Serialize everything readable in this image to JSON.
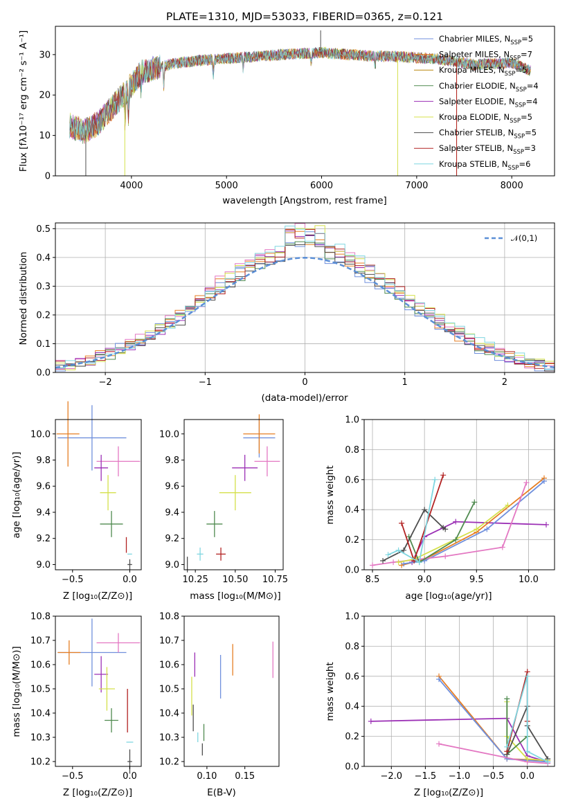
{
  "title": "PLATE=1310, MJD=53033, FIBERID=0365, z=0.121",
  "colors": {
    "Chabrier MILES": "#6f8fdc",
    "Salpeter MILES": "#e67e22",
    "Kroupa MILES": "#b8860b",
    "Chabrier ELODIE": "#4f8a4f",
    "Salpeter ELODIE": "#9b2fb5",
    "Kroupa ELODIE": "#d4e04a",
    "Chabrier STELIB": "#4d4d4d",
    "Salpeter STELIB": "#b22222",
    "Kroupa STELIB": "#7fd6e0",
    "pink": "#e377c2",
    "gaussian": "#5b8fd6"
  },
  "chart_data": [
    {
      "id": "spectrum",
      "type": "line",
      "xlabel": "wavelength [Angstrom, rest frame]",
      "ylabel": "Flux [fλ10⁻¹⁷ erg cm⁻² s⁻¹ A⁻¹]",
      "xlim": [
        3200,
        8450
      ],
      "ylim": [
        0,
        37
      ],
      "xticks": [
        4000,
        5000,
        6000,
        7000,
        8000
      ],
      "yticks": [
        0,
        10,
        20,
        30
      ],
      "continuum": [
        [
          3350,
          12.5
        ],
        [
          3500,
          11
        ],
        [
          3650,
          13
        ],
        [
          3800,
          17
        ],
        [
          3950,
          21
        ],
        [
          4100,
          25.5
        ],
        [
          4300,
          27
        ],
        [
          4500,
          28
        ],
        [
          4700,
          28.5
        ],
        [
          5000,
          29
        ],
        [
          5300,
          29.5
        ],
        [
          5600,
          30
        ],
        [
          6000,
          30.5
        ],
        [
          6400,
          29.8
        ],
        [
          6800,
          29.5
        ],
        [
          7200,
          29
        ],
        [
          7600,
          27.5
        ],
        [
          8000,
          28
        ],
        [
          8200,
          26
        ]
      ],
      "series": [
        {
          "name": "Chabrier MILES, N_SSP=5",
          "label_main": "Chabrier MILES, N",
          "label_sub": "SSP",
          "label_tail": "=5"
        },
        {
          "name": "Salpeter MILES, N_SSP=7",
          "label_main": "Salpeter MILES, N",
          "label_sub": "SSP",
          "label_tail": "=7"
        },
        {
          "name": "Kroupa MILES, N_SSP=5",
          "label_main": "Kroupa MILES, N",
          "label_sub": "SSP",
          "label_tail": "=5"
        },
        {
          "name": "Chabrier ELODIE, N_SSP=4",
          "label_main": "Chabrier ELODIE, N",
          "label_sub": "SSP",
          "label_tail": "=4"
        },
        {
          "name": "Salpeter ELODIE, N_SSP=4",
          "label_main": "Salpeter ELODIE, N",
          "label_sub": "SSP",
          "label_tail": "=4"
        },
        {
          "name": "Kroupa ELODIE, N_SSP=5",
          "label_main": "Kroupa ELODIE, N",
          "label_sub": "SSP",
          "label_tail": "=5"
        },
        {
          "name": "Chabrier STELIB, N_SSP=5",
          "label_main": "Chabrier STELIB, N",
          "label_sub": "SSP",
          "label_tail": "=5"
        },
        {
          "name": "Salpeter STELIB, N_SSP=3",
          "label_main": "Salpeter STELIB, N",
          "label_sub": "SSP",
          "label_tail": "=3"
        },
        {
          "name": "Kroupa STELIB, N_SSP=6",
          "label_main": "Kroupa STELIB, N",
          "label_sub": "SSP",
          "label_tail": "=6"
        }
      ],
      "legend": "top-right",
      "grid": false
    },
    {
      "id": "residuals",
      "type": "bar",
      "xlabel": "(data-model)/error",
      "ylabel": "Normed distribution",
      "xlim": [
        -2.5,
        2.5
      ],
      "ylim": [
        0,
        0.52
      ],
      "xticks": [
        -2,
        -1,
        0,
        1,
        2
      ],
      "yticks": [
        0.0,
        0.1,
        0.2,
        0.3,
        0.4,
        0.5
      ],
      "gaussian_label": "𝒩(0,1)",
      "legend": "top-right",
      "grid": true
    },
    {
      "id": "age_vs_Z",
      "type": "scatter",
      "xlabel": "Z [log₁₀(Z/Z⊙)]",
      "ylabel": "age  [log₁₀(age/yr)]",
      "xlim": [
        -0.65,
        0.1
      ],
      "ylim": [
        8.96,
        10.11
      ],
      "xticks": [
        -0.5,
        0.0
      ],
      "yticks": [
        9.0,
        9.2,
        9.4,
        9.6,
        9.8,
        10.0
      ],
      "points": [
        {
          "c": "Chabrier MILES",
          "x": -0.33,
          "y": 9.97,
          "xe": 0.3,
          "ye": 0.5
        },
        {
          "c": "Salpeter MILES",
          "x": -0.54,
          "y": 10.0,
          "xe": 0.1,
          "ye": 0.5
        },
        {
          "c": "pink",
          "x": -0.1,
          "y": 9.79,
          "xe": 0.19,
          "ye": 0.23
        },
        {
          "c": "Salpeter ELODIE",
          "x": -0.25,
          "y": 9.74,
          "xe": 0.06,
          "ye": 0.2
        },
        {
          "c": "Kroupa ELODIE",
          "x": -0.19,
          "y": 9.55,
          "xe": 0.07,
          "ye": 0.27
        },
        {
          "c": "Chabrier ELODIE",
          "x": -0.16,
          "y": 9.31,
          "xe": 0.1,
          "ye": 0.2
        },
        {
          "c": "Salpeter STELIB",
          "x": -0.03,
          "y": 9.15,
          "xe": 0.0,
          "ye": 0.12
        },
        {
          "c": "Kroupa STELIB",
          "x": -0.0,
          "y": 9.08,
          "xe": 0.02,
          "ye": 0.0
        },
        {
          "c": "Chabrier STELIB",
          "x": -0.0,
          "y": 9.0,
          "xe": 0.02,
          "ye": 0.08
        }
      ]
    },
    {
      "id": "age_vs_mass",
      "type": "scatter",
      "xlabel": "mass [log₁₀(M/M⊙)]",
      "ylabel": "",
      "xlim": [
        10.18,
        10.8
      ],
      "ylim": [
        8.96,
        10.11
      ],
      "xticks": [
        10.25,
        10.5,
        10.75
      ],
      "yticks": [
        9.0,
        9.2,
        9.4,
        9.6,
        9.8,
        10.0
      ],
      "points": [
        {
          "c": "Chabrier MILES",
          "x": 10.65,
          "y": 9.97,
          "xe": 0.1,
          "ye": 0.3
        },
        {
          "c": "Salpeter MILES",
          "x": 10.65,
          "y": 10.0,
          "xe": 0.1,
          "ye": 0.3
        },
        {
          "c": "pink",
          "x": 10.7,
          "y": 9.79,
          "xe": 0.08,
          "ye": 0.23
        },
        {
          "c": "Salpeter ELODIE",
          "x": 10.56,
          "y": 9.74,
          "xe": 0.08,
          "ye": 0.2
        },
        {
          "c": "Kroupa ELODIE",
          "x": 10.5,
          "y": 9.55,
          "xe": 0.1,
          "ye": 0.27
        },
        {
          "c": "Chabrier ELODIE",
          "x": 10.37,
          "y": 9.31,
          "xe": 0.05,
          "ye": 0.2
        },
        {
          "c": "Salpeter STELIB",
          "x": 10.41,
          "y": 9.08,
          "xe": 0.03,
          "ye": 0.1
        },
        {
          "c": "Kroupa STELIB",
          "x": 10.28,
          "y": 9.08,
          "xe": 0.02,
          "ye": 0.1
        },
        {
          "c": "Chabrier STELIB",
          "x": 10.2,
          "y": 9.0,
          "xe": 0.0,
          "ye": 0.12
        }
      ]
    },
    {
      "id": "weight_vs_age",
      "type": "line",
      "xlabel": "age  [log₁₀(age/yr)]",
      "ylabel": "mass weight",
      "xlim": [
        8.42,
        10.25
      ],
      "ylim": [
        0,
        1.0
      ],
      "xticks": [
        8.5,
        9.0,
        9.5,
        10.0
      ],
      "yticks": [
        0.0,
        0.2,
        0.4,
        0.6,
        0.8,
        1.0
      ],
      "grid": true,
      "series": [
        {
          "c": "Salpeter ELODIE",
          "x": [
            8.88,
            9.0,
            9.3,
            10.17
          ],
          "y": [
            0.05,
            0.22,
            0.32,
            0.3
          ]
        },
        {
          "c": "Salpeter MILES",
          "x": [
            8.78,
            9.0,
            9.5,
            10.15
          ],
          "y": [
            0.03,
            0.07,
            0.25,
            0.61
          ]
        },
        {
          "c": "Chabrier MILES",
          "x": [
            8.8,
            9.0,
            9.6,
            10.15
          ],
          "y": [
            0.04,
            0.06,
            0.27,
            0.59
          ]
        },
        {
          "c": "pink",
          "x": [
            8.5,
            8.7,
            9.2,
            9.75,
            9.98
          ],
          "y": [
            0.03,
            0.05,
            0.09,
            0.15,
            0.58
          ]
        },
        {
          "c": "Kroupa ELODIE",
          "x": [
            8.75,
            8.9,
            9.5,
            9.8
          ],
          "y": [
            0.05,
            0.07,
            0.27,
            0.43
          ]
        },
        {
          "c": "Chabrier ELODIE",
          "x": [
            8.85,
            8.95,
            9.3,
            9.48
          ],
          "y": [
            0.22,
            0.05,
            0.2,
            0.45
          ]
        },
        {
          "c": "Chabrier STELIB",
          "x": [
            8.6,
            8.8,
            9.0,
            9.18,
            9.2
          ],
          "y": [
            0.06,
            0.13,
            0.4,
            0.28,
            0.27
          ]
        },
        {
          "c": "Salpeter STELIB",
          "x": [
            8.78,
            8.9,
            9.18
          ],
          "y": [
            0.31,
            0.06,
            0.63
          ]
        },
        {
          "c": "Kroupa STELIB",
          "x": [
            8.65,
            8.75,
            8.95,
            9.1
          ],
          "y": [
            0.1,
            0.13,
            0.05,
            0.6
          ]
        }
      ]
    },
    {
      "id": "mass_vs_Z",
      "type": "scatter",
      "xlabel": "Z [log₁₀(Z/Z⊙)]",
      "ylabel": "mass [log₁₀(M/M⊙)]",
      "xlim": [
        -0.65,
        0.1
      ],
      "ylim": [
        10.18,
        10.8
      ],
      "xticks": [
        -0.5,
        0.0
      ],
      "yticks": [
        10.2,
        10.3,
        10.4,
        10.5,
        10.6,
        10.7,
        10.8
      ],
      "points": [
        {
          "c": "Chabrier MILES",
          "x": -0.33,
          "y": 10.65,
          "xe": 0.3,
          "ye": 0.28
        },
        {
          "c": "Salpeter MILES",
          "x": -0.53,
          "y": 10.65,
          "xe": 0.1,
          "ye": 0.1
        },
        {
          "c": "pink",
          "x": -0.1,
          "y": 10.69,
          "xe": 0.19,
          "ye": 0.08
        },
        {
          "c": "Salpeter ELODIE",
          "x": -0.25,
          "y": 10.56,
          "xe": 0.06,
          "ye": 0.15
        },
        {
          "c": "Kroupa ELODIE",
          "x": -0.2,
          "y": 10.5,
          "xe": 0.07,
          "ye": 0.18
        },
        {
          "c": "Chabrier ELODIE",
          "x": -0.16,
          "y": 10.37,
          "xe": 0.06,
          "ye": 0.1
        },
        {
          "c": "Salpeter STELIB",
          "x": -0.02,
          "y": 10.41,
          "xe": 0.0,
          "ye": 0.18
        },
        {
          "c": "Kroupa STELIB",
          "x": -0.0,
          "y": 10.28,
          "xe": 0.03,
          "ye": 0.0
        },
        {
          "c": "Chabrier STELIB",
          "x": -0.0,
          "y": 10.2,
          "xe": 0.02,
          "ye": 0.1
        }
      ]
    },
    {
      "id": "mass_vs_ebv",
      "type": "scatter",
      "xlabel": "E(B-V)",
      "ylabel": "",
      "xlim": [
        0.07,
        0.195
      ],
      "ylim": [
        10.18,
        10.8
      ],
      "xticks": [
        0.1,
        0.15
      ],
      "yticks": [
        10.2,
        10.3,
        10.4,
        10.5,
        10.6,
        10.7,
        10.8
      ],
      "points": [
        {
          "c": "Chabrier STELIB",
          "x": 0.082,
          "y": 10.38,
          "xe": 0,
          "ye": 0.11
        },
        {
          "c": "Kroupa ELODIE",
          "x": 0.08,
          "y": 10.47,
          "xe": 0,
          "ye": 0.16
        },
        {
          "c": "Salpeter ELODIE",
          "x": 0.084,
          "y": 10.6,
          "xe": 0,
          "ye": 0.1
        },
        {
          "c": "Kroupa STELIB",
          "x": 0.088,
          "y": 10.3,
          "xe": 0,
          "ye": 0.04
        },
        {
          "c": "Chabrier STELIB",
          "x": 0.094,
          "y": 10.25,
          "xe": 0,
          "ye": 0.05
        },
        {
          "c": "Chabrier ELODIE",
          "x": 0.096,
          "y": 10.32,
          "xe": 0,
          "ye": 0.07
        },
        {
          "c": "Chabrier MILES",
          "x": 0.118,
          "y": 10.55,
          "xe": 0,
          "ye": 0.18
        },
        {
          "c": "Salpeter MILES",
          "x": 0.134,
          "y": 10.62,
          "xe": 0,
          "ye": 0.13
        },
        {
          "c": "pink",
          "x": 0.187,
          "y": 10.62,
          "xe": 0,
          "ye": 0.15
        }
      ]
    },
    {
      "id": "weight_vs_Z",
      "type": "line",
      "xlabel": "Z [log₁₀(Z/Z⊙)]",
      "ylabel": "mass weight",
      "xlim": [
        -2.4,
        0.4
      ],
      "ylim": [
        0,
        1.0
      ],
      "xticks": [
        -2.0,
        -1.5,
        -1.0,
        -0.5,
        0.0
      ],
      "yticks": [
        0.0,
        0.2,
        0.4,
        0.6,
        0.8,
        1.0
      ],
      "grid": true,
      "series": [
        {
          "c": "Salpeter ELODIE",
          "x": [
            -2.3,
            -0.3,
            0.0,
            0.3
          ],
          "y": [
            0.3,
            0.32,
            0.07,
            0.03
          ]
        },
        {
          "c": "Salpeter MILES",
          "x": [
            -1.3,
            -0.3,
            0.3
          ],
          "y": [
            0.6,
            0.05,
            0.04
          ]
        },
        {
          "c": "Chabrier MILES",
          "x": [
            -1.3,
            -0.3,
            0.3
          ],
          "y": [
            0.58,
            0.05,
            0.03
          ]
        },
        {
          "c": "pink",
          "x": [
            -1.3,
            0.0,
            0.3
          ],
          "y": [
            0.15,
            0.03,
            0.02
          ]
        },
        {
          "c": "Kroupa ELODIE",
          "x": [
            -0.3,
            -0.3,
            0.0,
            0.3
          ],
          "y": [
            0.43,
            0.2,
            0.05,
            0.04
          ]
        },
        {
          "c": "Chabrier ELODIE",
          "x": [
            -0.3,
            -0.3,
            0.0
          ],
          "y": [
            0.45,
            0.08,
            0.2
          ]
        },
        {
          "c": "Chabrier STELIB",
          "x": [
            -0.3,
            0.0,
            0.0,
            0.3
          ],
          "y": [
            0.08,
            0.4,
            0.27,
            0.05
          ]
        },
        {
          "c": "Salpeter STELIB",
          "x": [
            -0.3,
            0.0,
            0.0
          ],
          "y": [
            0.1,
            0.63,
            0.3
          ]
        },
        {
          "c": "Kroupa STELIB",
          "x": [
            -0.3,
            0.0,
            0.0,
            0.3
          ],
          "y": [
            0.13,
            0.6,
            0.1,
            0.03
          ]
        }
      ]
    }
  ]
}
